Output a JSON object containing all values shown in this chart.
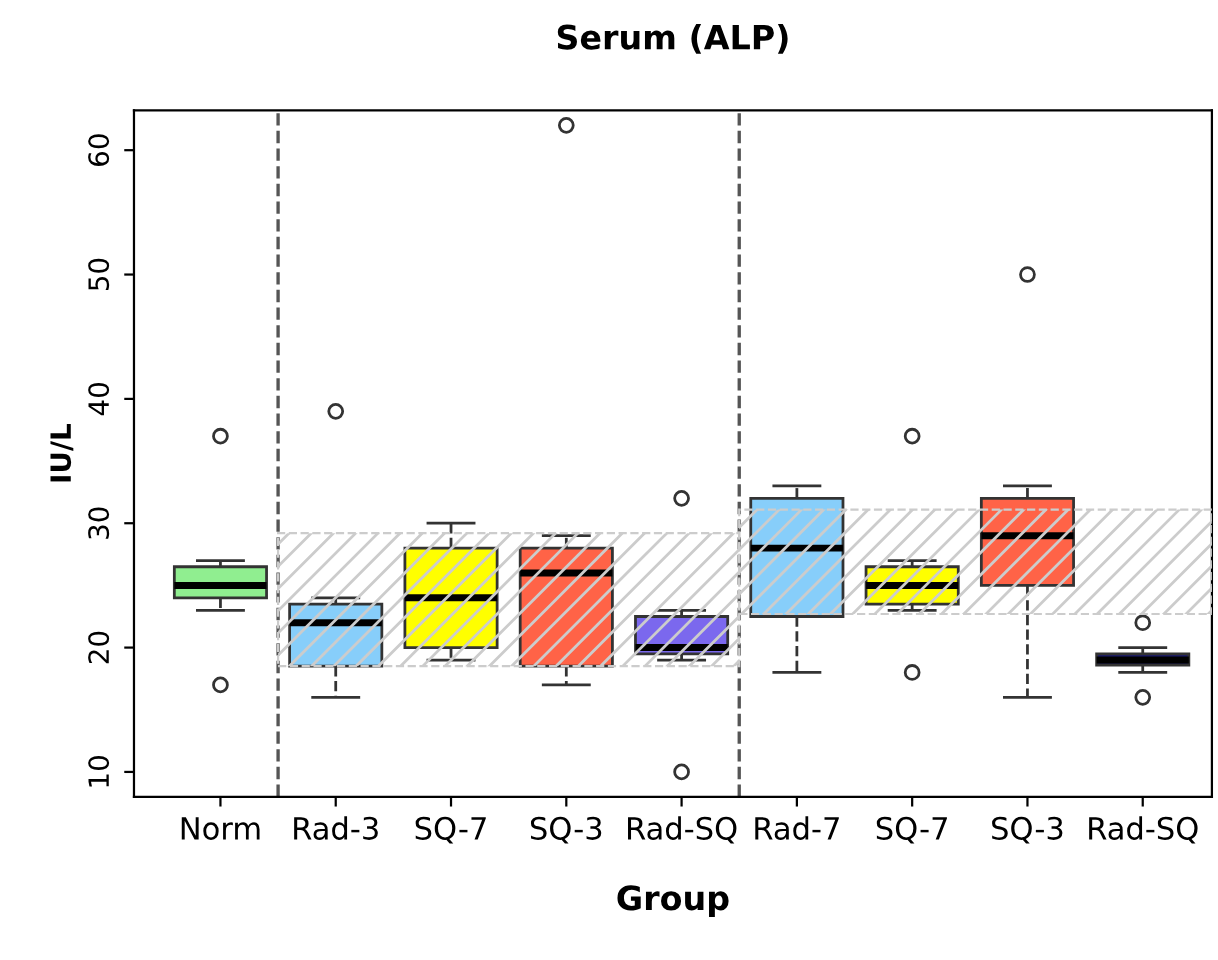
{
  "chart_data": {
    "type": "box",
    "title": "Serum (ALP)",
    "xlabel": "Group",
    "ylabel": "IU/L",
    "categories": [
      "Norm",
      "Rad-3",
      "SQ-7",
      "SQ-3",
      "Rad-SQ",
      "Rad-7",
      "SQ-7",
      "SQ-3",
      "Rad-SQ"
    ],
    "colors": [
      "#90ee90",
      "#87cefa",
      "#ffff00",
      "#ff6347",
      "#7b68ee",
      "#87cefa",
      "#ffff00",
      "#ff6347",
      "#191970"
    ],
    "boxes": [
      {
        "low": 23,
        "q1": 24,
        "median": 25,
        "q3": 26.5,
        "high": 27,
        "outliers": [
          37,
          17
        ]
      },
      {
        "low": 16,
        "q1": 18.5,
        "median": 22,
        "q3": 23.5,
        "high": 24,
        "outliers": [
          39
        ]
      },
      {
        "low": 19,
        "q1": 20,
        "median": 24,
        "q3": 28,
        "high": 30
      },
      {
        "low": 17,
        "q1": 18.5,
        "median": 26,
        "q3": 28,
        "high": 29,
        "outliers": [
          62
        ]
      },
      {
        "low": 19,
        "q1": 19.5,
        "median": 20,
        "q3": 22.5,
        "high": 23,
        "outliers": [
          32,
          10
        ]
      },
      {
        "low": 18,
        "q1": 22.5,
        "median": 28,
        "q3": 32,
        "high": 33
      },
      {
        "low": 23,
        "q1": 23.5,
        "median": 25,
        "q3": 26.5,
        "high": 27,
        "outliers": [
          37,
          18
        ]
      },
      {
        "low": 16,
        "q1": 25,
        "median": 29,
        "q3": 32,
        "high": 33,
        "outliers": [
          50
        ]
      },
      {
        "low": 18,
        "q1": 18.6,
        "median": 19,
        "q3": 19.5,
        "high": 20,
        "outliers": [
          22,
          16
        ]
      }
    ],
    "ylim": [
      8,
      63.2
    ],
    "yticks": [
      10,
      20,
      30,
      40,
      50,
      60
    ],
    "bands": [
      {
        "axis": "y",
        "from": 18.5,
        "to": 29.2,
        "color": "#cccccc"
      },
      {
        "axis": "y",
        "from": 22.7,
        "to": 31.1,
        "color": "#cccccc"
      }
    ],
    "grid": false,
    "legend": false
  }
}
